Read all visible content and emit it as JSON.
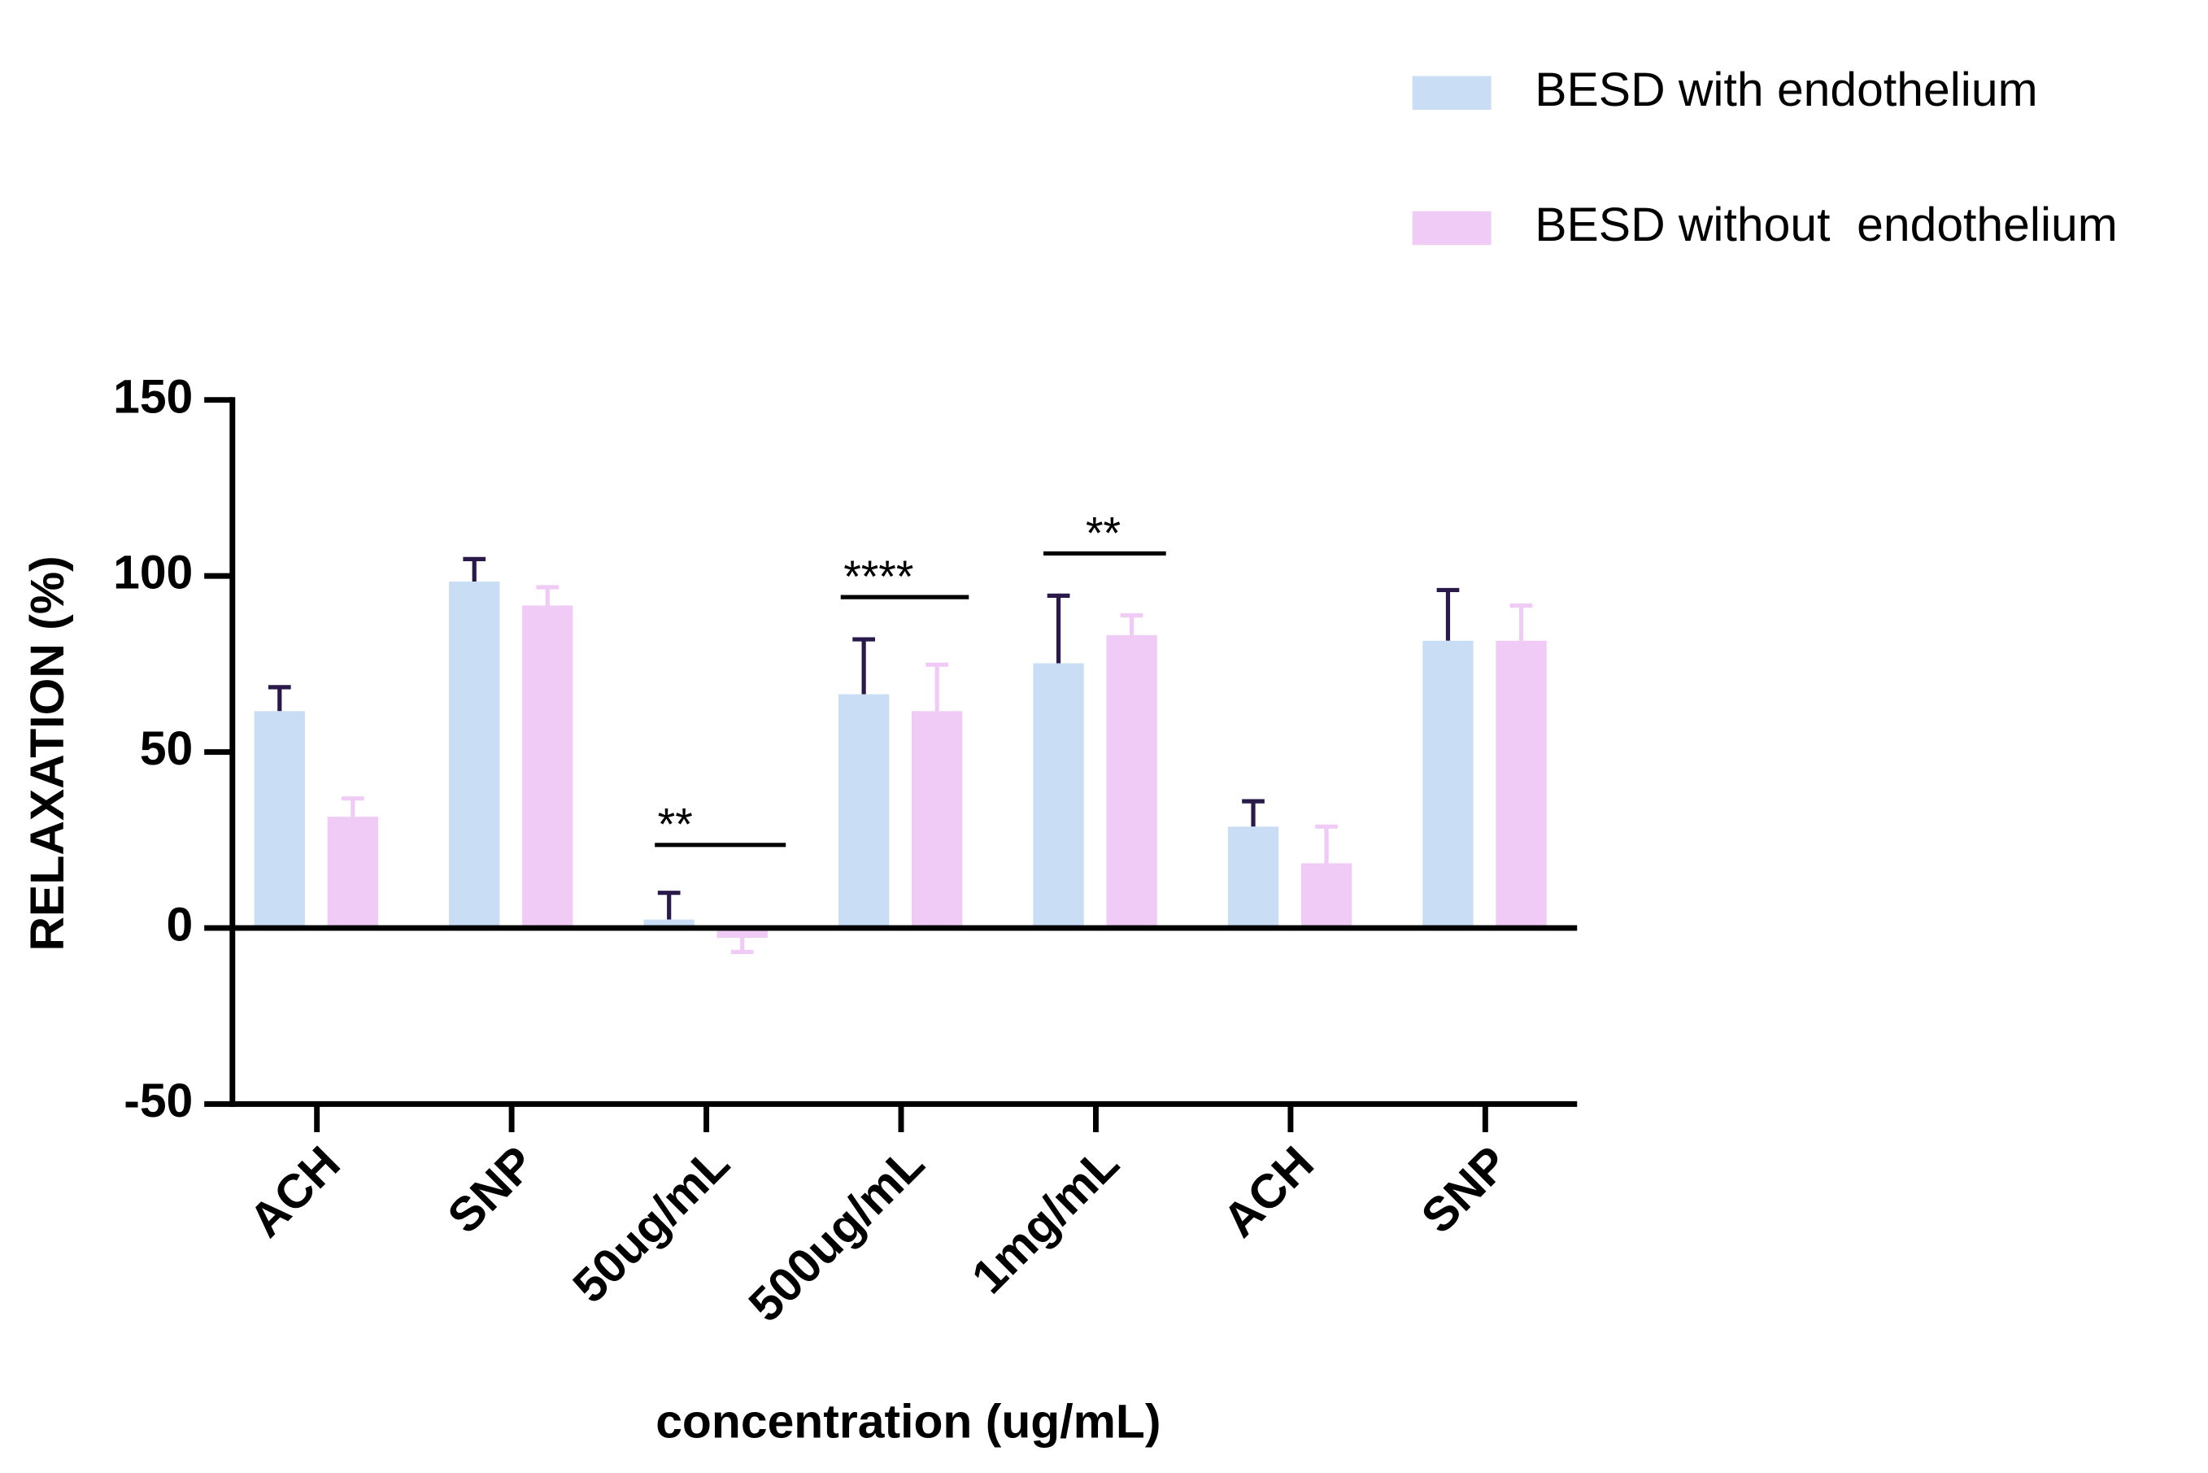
{
  "chart_data": {
    "type": "bar",
    "x_label": "concentration (ug/mL)",
    "y_label": "RELAXATION (%)",
    "categories": [
      "ACH",
      "SNP",
      "50ug/mL",
      "500ug/mL",
      "1mg/mL",
      "ACH",
      "SNP"
    ],
    "series": [
      {
        "name": "BESD with endothelium",
        "color": "#c9ddf5",
        "error_color": "#2a1a4a",
        "values": [
          61.6,
          98.4,
          2.4,
          66.4,
          75.2,
          28.8,
          81.6
        ],
        "errors": [
          6.8,
          6.4,
          7.6,
          15.6,
          19.2,
          7.2,
          14.4
        ]
      },
      {
        "name": "BESD without  endothelium",
        "color": "#efcbf5",
        "error_color": "#efcbf5",
        "values": [
          31.6,
          91.6,
          -2.8,
          61.6,
          83.2,
          18.4,
          81.6
        ],
        "errors": [
          5.2,
          5.2,
          4.0,
          13.2,
          5.6,
          10.4,
          10.0
        ]
      }
    ],
    "annotations": [
      "**",
      "****",
      "**"
    ],
    "ylim": [
      -50,
      150
    ],
    "yticks": [
      -50,
      0,
      50,
      100,
      150
    ],
    "legend": "top-right"
  }
}
